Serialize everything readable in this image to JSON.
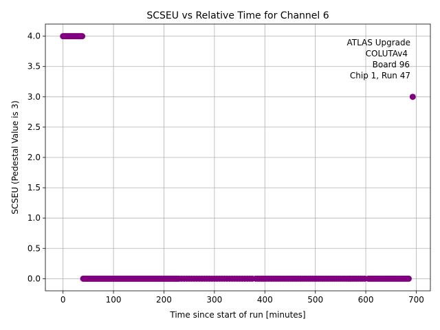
{
  "chart_data": {
    "type": "scatter",
    "title": "SCSEU vs Relative Time for Channel 6",
    "xlabel": "Time since start of run [minutes]",
    "ylabel": "SCSEU (Pedestal Value is 3)",
    "xlim": [
      -35,
      728
    ],
    "ylim": [
      -0.2,
      4.2
    ],
    "xticks": [
      0,
      100,
      200,
      300,
      400,
      500,
      600,
      700
    ],
    "xtick_labels": [
      "0",
      "100",
      "200",
      "300",
      "400",
      "500",
      "600",
      "700"
    ],
    "yticks": [
      0.0,
      0.5,
      1.0,
      1.5,
      2.0,
      2.5,
      3.0,
      3.5,
      4.0
    ],
    "ytick_labels": [
      "0.0",
      "0.5",
      "1.0",
      "1.5",
      "2.0",
      "2.5",
      "3.0",
      "3.5",
      "4.0"
    ],
    "grid": true,
    "color": "#800080",
    "annotation_position": "top-right",
    "annotation_lines": [
      "ATLAS Upgrade",
      "COLUTAv4",
      "Board 96",
      "Chip 1, Run 47"
    ],
    "series": [
      {
        "segments": [
          {
            "y": 4,
            "x_start": 0,
            "x_end": 38,
            "step": 2
          },
          {
            "y": 0,
            "x_start": 40,
            "x_end": 230,
            "step": 2
          },
          {
            "y": 0,
            "x_start": 235,
            "x_end": 375,
            "step": 5
          },
          {
            "y": 0,
            "x_start": 382,
            "x_end": 598,
            "step": 4
          },
          {
            "y": 0,
            "x_start": 605,
            "x_end": 686,
            "step": 2.5
          }
        ],
        "points": [
          {
            "x": 693,
            "y": 3
          }
        ]
      }
    ]
  }
}
